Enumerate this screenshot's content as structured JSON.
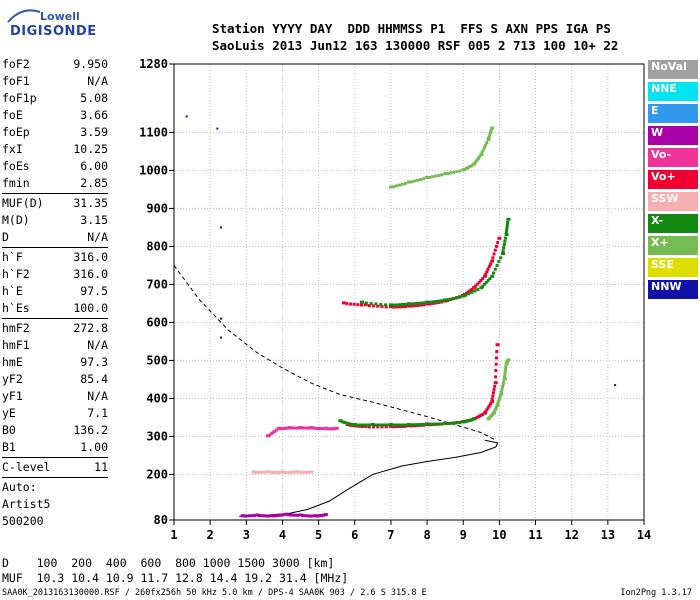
{
  "logo": {
    "line1": "Lowell",
    "line2": "DIGISONDE"
  },
  "header": {
    "line1": "Station YYYY DAY  DDD HHMMSS P1  FFS S AXN PPS IGA PS",
    "line2": "SaoLuis 2013 Jun12 163 130000 RSF 005 2 713 100 10+ 22"
  },
  "params": {
    "group1": [
      {
        "k": "foF2",
        "v": "9.950"
      },
      {
        "k": "foF1",
        "v": "N/A"
      },
      {
        "k": "foF1p",
        "v": "5.08"
      },
      {
        "k": "foE",
        "v": "3.66"
      },
      {
        "k": "foEp",
        "v": "3.59"
      },
      {
        "k": "fxI",
        "v": "10.25"
      },
      {
        "k": "foEs",
        "v": "6.00"
      },
      {
        "k": "fmin",
        "v": "2.85"
      }
    ],
    "group2": [
      {
        "k": "MUF(D)",
        "v": "31.35"
      },
      {
        "k": "M(D)",
        "v": "3.15"
      },
      {
        "k": "D",
        "v": "N/A"
      }
    ],
    "group3": [
      {
        "k": "h`F",
        "v": "316.0"
      },
      {
        "k": "h`F2",
        "v": "316.0"
      },
      {
        "k": "h`E",
        "v": "97.5"
      },
      {
        "k": "h`Es",
        "v": "100.0"
      }
    ],
    "group4": [
      {
        "k": "hmF2",
        "v": "272.8"
      },
      {
        "k": "hmF1",
        "v": "N/A"
      },
      {
        "k": "hmE",
        "v": "97.3"
      },
      {
        "k": "yF2",
        "v": "85.4"
      },
      {
        "k": "yF1",
        "v": "N/A"
      },
      {
        "k": "yE",
        "v": "7.1"
      },
      {
        "k": "B0",
        "v": "136.2"
      },
      {
        "k": "B1",
        "v": "1.00"
      }
    ],
    "group5": [
      {
        "k": "C-level",
        "v": "11"
      }
    ],
    "auto": [
      "Auto:",
      "Artist5",
      "500200"
    ]
  },
  "legend": [
    {
      "label": "NoVal",
      "color": "#a0a0a0"
    },
    {
      "label": "NNE",
      "color": "#00e5ee"
    },
    {
      "label": "E",
      "color": "#3399ee"
    },
    {
      "label": "W",
      "color": "#aa00aa"
    },
    {
      "label": "Vo-",
      "color": "#ee3399"
    },
    {
      "label": "Vo+",
      "color": "#ee0033"
    },
    {
      "label": "SSW",
      "color": "#f4b0b0"
    },
    {
      "label": "X-",
      "color": "#118811"
    },
    {
      "label": "X+",
      "color": "#77bb55"
    },
    {
      "label": "SSE",
      "color": "#dddd00"
    },
    {
      "label": "NNW",
      "color": "#1111aa"
    }
  ],
  "footer": {
    "row1": "D    100  200  400  600  800 1000 1500 3000 [km]",
    "row2": "MUF  10.3 10.4 10.9 11.7 12.8 14.4 19.2 31.4 [MHz]",
    "row3": "SAA0K_2013163130000.RSF / 260fx256h 50 kHz 5.0 km / DPS-4 SAA0K 903 / 2.6 S 315.8 E",
    "version": "Ion2Png 1.3.17"
  },
  "chart_data": {
    "type": "scatter",
    "xlim": [
      1,
      14
    ],
    "ylim": [
      80,
      1280
    ],
    "x_ticks": [
      1,
      2,
      3,
      4,
      5,
      6,
      7,
      8,
      9,
      10,
      11,
      12,
      13,
      14
    ],
    "y_ticks": [
      80,
      200,
      300,
      400,
      500,
      600,
      700,
      800,
      900,
      1000,
      1100,
      1280
    ],
    "grid": true,
    "series": [
      {
        "name": "trace-F2-X+",
        "color": "#77bb55",
        "x": [
          9.7,
          9.85,
          9.95,
          10.05,
          10.15,
          10.2,
          10.25
        ],
        "y": [
          345,
          360,
          380,
          410,
          450,
          490,
          500
        ]
      },
      {
        "name": "trace-F2-Vo+",
        "color": "#ee0033",
        "x": [
          5.8,
          6.3,
          7.0,
          7.5,
          8.0,
          8.5,
          9.0,
          9.3,
          9.6,
          9.8,
          9.9,
          9.95
        ],
        "y": [
          330,
          325,
          325,
          327,
          330,
          333,
          338,
          345,
          360,
          390,
          440,
          540
        ]
      },
      {
        "name": "trace-F2-X-",
        "color": "#118811",
        "x": [
          5.6,
          6.0,
          6.5,
          7.0,
          7.5,
          8.0,
          8.5,
          9.0,
          9.3
        ],
        "y": [
          340,
          330,
          330,
          330,
          330,
          332,
          333,
          337,
          345
        ]
      },
      {
        "name": "trace-F1-Vo-",
        "color": "#ee3399",
        "x": [
          3.6,
          3.9,
          4.2,
          4.5,
          4.8,
          5.2,
          5.5
        ],
        "y": [
          300,
          320,
          322,
          322,
          322,
          320,
          320
        ]
      },
      {
        "name": "trace-Es-W",
        "color": "#aa00aa",
        "x": [
          2.9,
          3.3,
          3.7,
          4.1,
          4.5,
          4.9,
          5.2
        ],
        "y": [
          90,
          92,
          90,
          94,
          92,
          90,
          93
        ]
      },
      {
        "name": "trace-Es2-SSW",
        "color": "#f4b0b0",
        "x": [
          3.2,
          3.6,
          4.0,
          4.4,
          4.8
        ],
        "y": [
          205,
          206,
          205,
          206,
          205
        ]
      },
      {
        "name": "trace-2F2-Vo+",
        "color": "#ee0033",
        "x": [
          5.7,
          6.3,
          7.0,
          7.5,
          8.0,
          8.5,
          9.0,
          9.3,
          9.6,
          9.8,
          10.0
        ],
        "y": [
          650,
          645,
          640,
          642,
          647,
          655,
          670,
          690,
          720,
          760,
          820
        ]
      },
      {
        "name": "trace-2F2-X-",
        "color": "#118811",
        "x": [
          6.2,
          7.0,
          7.5,
          8.0,
          8.5,
          9.0,
          9.5,
          9.8,
          10.1,
          10.2,
          10.25
        ],
        "y": [
          652,
          645,
          648,
          652,
          658,
          668,
          690,
          720,
          780,
          830,
          870
        ]
      },
      {
        "name": "trace-3F2-X+",
        "color": "#77bb55",
        "x": [
          7.0,
          7.5,
          8.0,
          8.5,
          9.0,
          9.3,
          9.5,
          9.7,
          9.8
        ],
        "y": [
          955,
          968,
          980,
          990,
          1000,
          1015,
          1040,
          1080,
          1110
        ]
      },
      {
        "name": "isolated",
        "color": "#1111aa",
        "x": [
          1.35,
          2.2,
          2.3,
          2.3,
          2.3,
          13.2
        ],
        "y": [
          1142,
          1110,
          850,
          610,
          560,
          435
        ]
      }
    ],
    "profile_solid": {
      "x": [
        2.8,
        3.5,
        4.2,
        4.7,
        5.3,
        5.8,
        6.5,
        7.3,
        8.0,
        8.8,
        9.5,
        9.9,
        9.95,
        9.6
      ],
      "y": [
        90,
        92,
        98,
        108,
        130,
        160,
        200,
        222,
        234,
        245,
        258,
        272,
        283,
        290
      ]
    },
    "profile_dashed": {
      "x": [
        1.0,
        1.7,
        2.5,
        3.3,
        4.0,
        4.8,
        5.6,
        6.5,
        7.3,
        8.0,
        8.8,
        9.5,
        9.9
      ],
      "y": [
        750,
        660,
        580,
        520,
        480,
        440,
        410,
        390,
        370,
        352,
        330,
        310,
        290
      ]
    }
  }
}
